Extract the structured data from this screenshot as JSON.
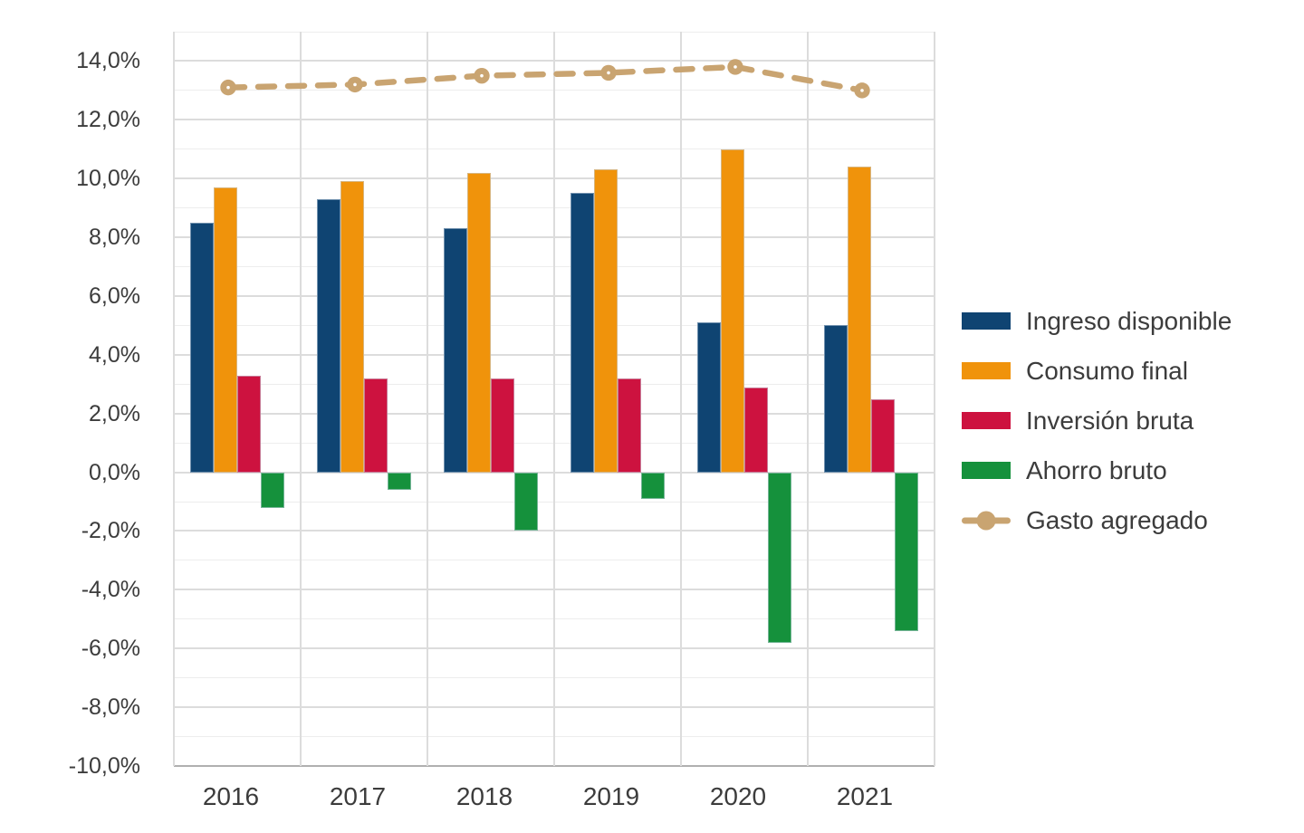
{
  "chart_data": {
    "type": "bar",
    "title": "",
    "categories": [
      "2016",
      "2017",
      "2018",
      "2019",
      "2020",
      "2021"
    ],
    "series": [
      {
        "name": "Ingreso disponible",
        "type": "bar",
        "color": "#0F4472",
        "values": [
          8.5,
          9.3,
          8.3,
          9.5,
          5.1,
          5.0
        ]
      },
      {
        "name": "Consumo final",
        "type": "bar",
        "color": "#F0930B",
        "values": [
          9.7,
          9.9,
          10.2,
          10.3,
          11.0,
          10.4
        ]
      },
      {
        "name": "Inversión bruta",
        "type": "bar",
        "color": "#CD123F",
        "values": [
          3.3,
          3.2,
          3.2,
          3.2,
          2.9,
          2.5
        ]
      },
      {
        "name": "Ahorro bruto",
        "type": "bar",
        "color": "#15913C",
        "values": [
          -1.2,
          -0.6,
          -2.0,
          -0.9,
          -5.8,
          -5.4
        ]
      },
      {
        "name": "Gasto agregado",
        "type": "line",
        "dashed": true,
        "color": "#C9A471",
        "values": [
          13.1,
          13.2,
          13.5,
          13.6,
          13.8,
          13.0
        ]
      }
    ],
    "ylim": [
      -10,
      15
    ],
    "yticks": [
      {
        "value": 14,
        "label": "14,0%"
      },
      {
        "value": 12,
        "label": "12,0%"
      },
      {
        "value": 10,
        "label": "10,0%"
      },
      {
        "value": 8,
        "label": "8,0%"
      },
      {
        "value": 6,
        "label": "6,0%"
      },
      {
        "value": 4,
        "label": "4,0%"
      },
      {
        "value": 2,
        "label": "2,0%"
      },
      {
        "value": 0,
        "label": "0,0%"
      },
      {
        "value": -2,
        "label": "-2,0%"
      },
      {
        "value": -4,
        "label": "-4,0%"
      },
      {
        "value": -6,
        "label": "-6,0%"
      },
      {
        "value": -8,
        "label": "-8,0%"
      },
      {
        "value": -10,
        "label": "-10,0%"
      }
    ],
    "grid": "both",
    "gridline_step": 1,
    "legend_position": "right",
    "value_format": "percent-comma-decimal"
  }
}
